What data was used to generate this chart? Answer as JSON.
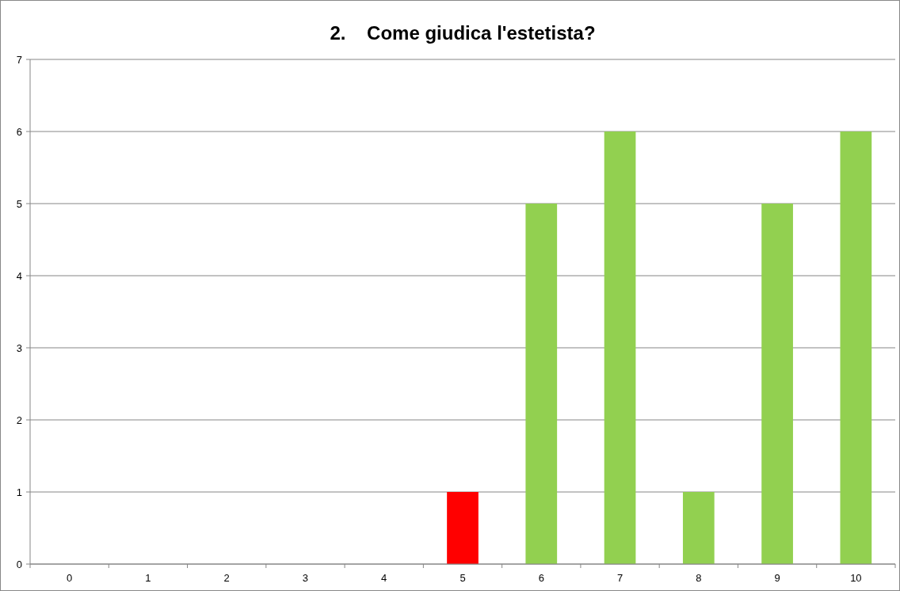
{
  "chart_data": {
    "type": "bar",
    "title": "2.    Come giudica l'estetista?",
    "categories": [
      "0",
      "1",
      "2",
      "3",
      "4",
      "5",
      "6",
      "7",
      "8",
      "9",
      "10"
    ],
    "values": [
      0,
      0,
      0,
      0,
      0,
      1,
      5,
      6,
      1,
      5,
      6
    ],
    "colors": [
      "#92d050",
      "#92d050",
      "#92d050",
      "#92d050",
      "#92d050",
      "#ff0000",
      "#92d050",
      "#92d050",
      "#92d050",
      "#92d050",
      "#92d050"
    ],
    "ylim": [
      0,
      7
    ],
    "yticks": [
      0,
      1,
      2,
      3,
      4,
      5,
      6,
      7
    ],
    "grid": "y"
  }
}
